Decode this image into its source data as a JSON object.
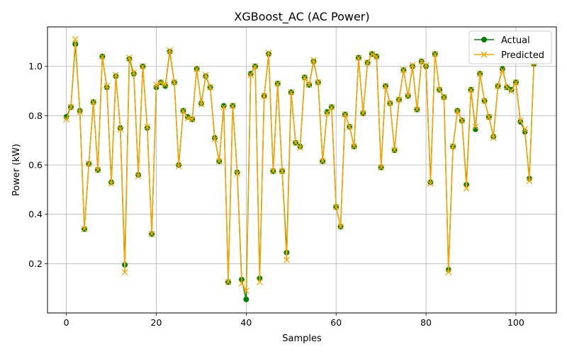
{
  "chart_data": {
    "type": "line",
    "title": "XGBoost_AC (AC Power)",
    "xlabel": "Samples",
    "ylabel": "Power (kW)",
    "xlim": [
      -4.2,
      109
    ],
    "ylim": [
      0.0,
      1.16
    ],
    "xticks": [
      0,
      20,
      40,
      60,
      80,
      100
    ],
    "yticks": [
      0.2,
      0.4,
      0.6,
      0.8,
      1.0
    ],
    "ytick_labels": [
      "0.2",
      "0.4",
      "0.6",
      "0.8",
      "1.0"
    ],
    "grid": true,
    "legend_position": "top-right",
    "series": [
      {
        "name": "Actual",
        "color": "#008000",
        "marker": "circle",
        "values": [
          0.795,
          0.835,
          1.09,
          0.82,
          0.34,
          0.605,
          0.855,
          0.58,
          1.04,
          0.915,
          0.53,
          0.96,
          0.75,
          0.195,
          1.03,
          0.97,
          0.56,
          1.0,
          0.75,
          0.32,
          0.915,
          0.935,
          0.92,
          1.06,
          0.935,
          0.6,
          0.82,
          0.795,
          0.785,
          0.99,
          0.85,
          0.96,
          0.915,
          0.71,
          0.615,
          0.84,
          0.125,
          0.84,
          0.57,
          0.135,
          0.055,
          0.97,
          1.0,
          0.14,
          0.88,
          1.05,
          0.575,
          0.93,
          0.575,
          0.245,
          0.895,
          0.69,
          0.675,
          0.955,
          0.925,
          1.02,
          0.935,
          0.615,
          0.815,
          0.835,
          0.43,
          0.35,
          0.805,
          0.755,
          0.675,
          1.035,
          0.81,
          1.015,
          1.05,
          1.04,
          0.59,
          0.92,
          0.85,
          0.66,
          0.865,
          0.985,
          0.88,
          1.0,
          0.825,
          1.02,
          1.0,
          0.53,
          1.05,
          0.905,
          0.875,
          0.175,
          0.675,
          0.82,
          0.78,
          0.52,
          0.905,
          0.745,
          0.97,
          0.86,
          0.795,
          0.715,
          0.92,
          0.99,
          0.915,
          0.905,
          0.935,
          0.775,
          0.735,
          0.545,
          1.01
        ]
      },
      {
        "name": "Predicted",
        "color": "#FFA500",
        "marker": "x",
        "values": [
          0.785,
          0.835,
          1.11,
          0.815,
          0.34,
          0.605,
          0.855,
          0.58,
          1.04,
          0.92,
          0.525,
          0.965,
          0.745,
          0.165,
          1.035,
          0.975,
          0.555,
          1.0,
          0.755,
          0.32,
          0.925,
          0.935,
          0.925,
          1.065,
          0.935,
          0.595,
          0.82,
          0.79,
          0.785,
          0.99,
          0.845,
          0.965,
          0.915,
          0.705,
          0.615,
          0.835,
          0.125,
          0.84,
          0.565,
          0.12,
          0.09,
          0.965,
          1.0,
          0.125,
          0.88,
          1.055,
          0.575,
          0.93,
          0.575,
          0.215,
          0.895,
          0.69,
          0.67,
          0.955,
          0.925,
          1.025,
          0.935,
          0.615,
          0.81,
          0.835,
          0.43,
          0.35,
          0.805,
          0.755,
          0.675,
          1.035,
          0.81,
          1.015,
          1.05,
          1.04,
          0.59,
          0.92,
          0.85,
          0.66,
          0.865,
          0.985,
          0.88,
          1.005,
          0.825,
          1.02,
          1.005,
          0.525,
          1.05,
          0.905,
          0.875,
          0.165,
          0.675,
          0.82,
          0.78,
          0.505,
          0.905,
          0.755,
          0.97,
          0.86,
          0.795,
          0.71,
          0.92,
          0.985,
          0.915,
          0.9,
          0.935,
          0.78,
          0.745,
          0.535,
          1.015
        ]
      }
    ]
  }
}
